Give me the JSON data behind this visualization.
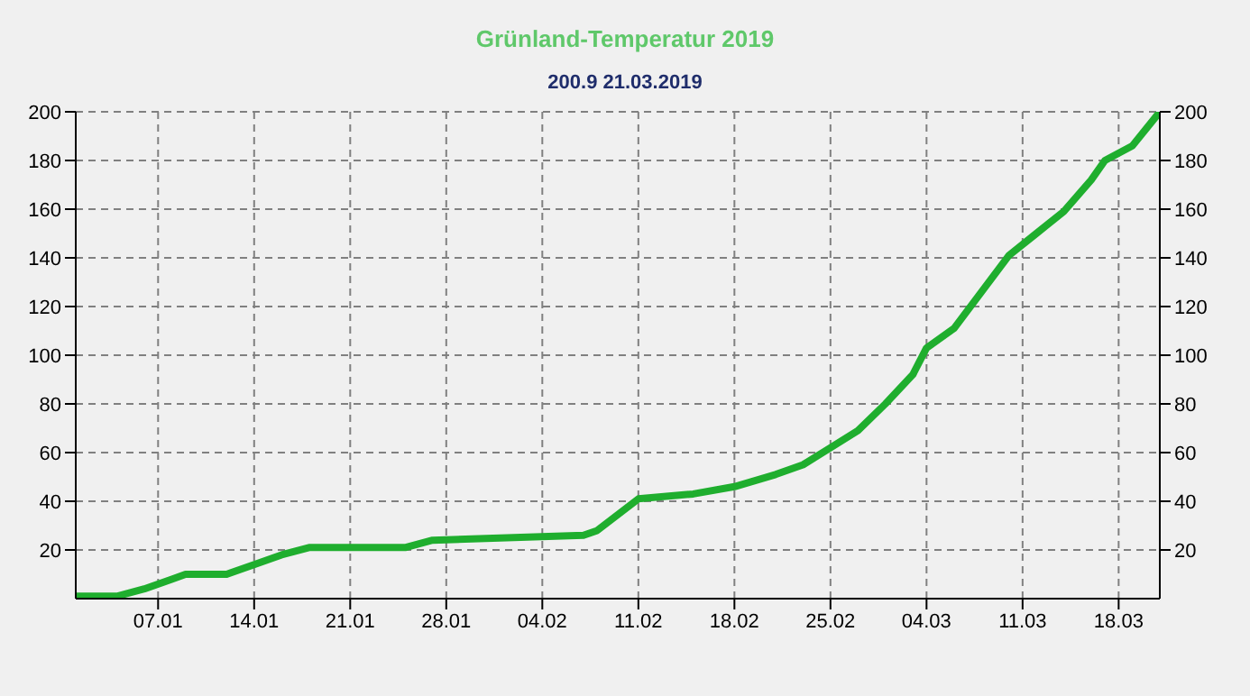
{
  "chart_data": {
    "type": "line",
    "title": "Grünland-Temperatur  2019",
    "subtitle": "200.9  21.03.2019",
    "x": [
      "2019-01-01",
      "2019-01-04",
      "2019-01-06",
      "2019-01-08",
      "2019-01-09",
      "2019-01-12",
      "2019-01-14",
      "2019-01-16",
      "2019-01-18",
      "2019-01-25",
      "2019-01-27",
      "2019-02-07",
      "2019-02-08",
      "2019-02-11",
      "2019-02-15",
      "2019-02-18",
      "2019-02-21",
      "2019-02-23",
      "2019-02-25",
      "2019-02-27",
      "2019-03-01",
      "2019-03-03",
      "2019-03-04",
      "2019-03-06",
      "2019-03-08",
      "2019-03-10",
      "2019-03-12",
      "2019-03-14",
      "2019-03-16",
      "2019-03-17",
      "2019-03-19",
      "2019-03-21"
    ],
    "series": [
      {
        "color": "#1fae2e",
        "values": [
          1,
          1,
          4,
          8,
          10,
          10,
          14,
          18,
          21,
          21,
          24,
          26,
          28,
          41,
          43,
          46,
          51,
          55,
          62,
          69,
          80,
          92,
          103,
          111,
          126,
          141,
          150,
          159,
          172,
          180,
          186,
          200
        ]
      }
    ],
    "xlim": [
      "2019-01-01",
      "2019-03-21"
    ],
    "xticks": [
      {
        "value": "2019-01-07",
        "label": "07.01"
      },
      {
        "value": "2019-01-14",
        "label": "14.01"
      },
      {
        "value": "2019-01-21",
        "label": "21.01"
      },
      {
        "value": "2019-01-28",
        "label": "28.01"
      },
      {
        "value": "2019-02-04",
        "label": "04.02"
      },
      {
        "value": "2019-02-11",
        "label": "11.02"
      },
      {
        "value": "2019-02-18",
        "label": "18.02"
      },
      {
        "value": "2019-02-25",
        "label": "25.02"
      },
      {
        "value": "2019-03-04",
        "label": "04.03"
      },
      {
        "value": "2019-03-11",
        "label": "11.03"
      },
      {
        "value": "2019-03-18",
        "label": "18.03"
      }
    ],
    "ylim": [
      0,
      200
    ],
    "yticks": [
      20,
      40,
      60,
      80,
      100,
      120,
      140,
      160,
      180,
      200
    ],
    "y2lim": [
      0,
      200
    ],
    "y2ticks": [
      20,
      40,
      60,
      80,
      100,
      120,
      140,
      160,
      180,
      200
    ],
    "grid": true,
    "legend": false,
    "marker": "none",
    "line_style": "solid"
  }
}
